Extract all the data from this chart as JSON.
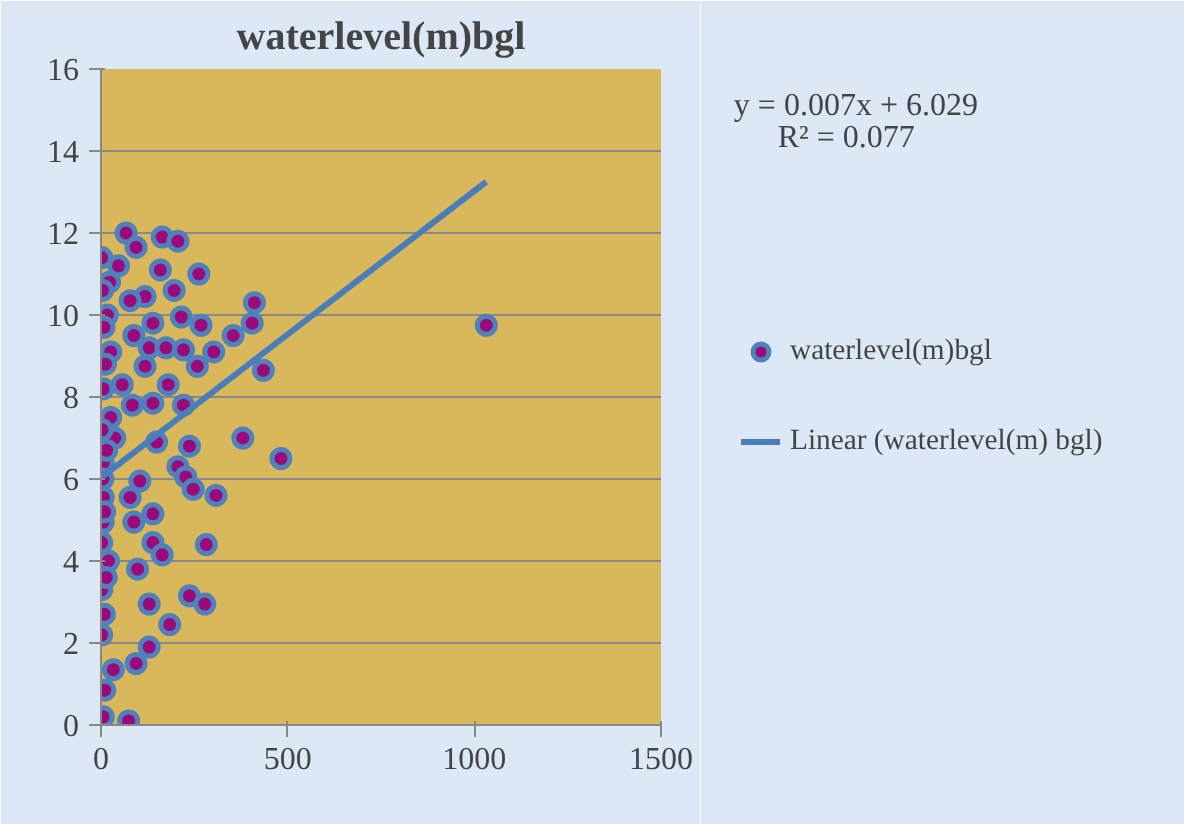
{
  "chart_data": {
    "type": "scatter",
    "title": "waterlevel(m)bgl",
    "annotations": [
      "y = 0.007x + 6.029",
      "R² = 0.077"
    ],
    "xlim": [
      0,
      1500
    ],
    "xticks": [
      0,
      500,
      1000,
      1500
    ],
    "ylim": [
      0,
      16
    ],
    "yticks": [
      0,
      2,
      4,
      6,
      8,
      10,
      12,
      14,
      16
    ],
    "grid": "y",
    "legend": "right",
    "series": [
      {
        "name": "waterlevel(m)bgl",
        "color": "#9b0a7a",
        "marker": "circle",
        "x": [
          67,
          164,
          206,
          94,
          2,
          47,
          159,
          262,
          23,
          196,
          411,
          118,
          78,
          17,
          215,
          139,
          268,
          405,
          354,
          88,
          26,
          129,
          174,
          221,
          302,
          258,
          435,
          118,
          180,
          57,
          6,
          139,
          84,
          221,
          26,
          149,
          380,
          482,
          37,
          237,
          206,
          227,
          247,
          308,
          6,
          104,
          6,
          78,
          139,
          88,
          6,
          2,
          139,
          164,
          282,
          98,
          2,
          129,
          237,
          278,
          184,
          2,
          129,
          94,
          33,
          10,
          6,
          74,
          1032,
          4,
          8,
          12,
          3,
          15,
          5,
          10,
          20,
          14,
          9
        ],
        "values": [
          12.0,
          11.9,
          11.8,
          11.65,
          11.4,
          11.2,
          11.1,
          11.0,
          10.8,
          10.6,
          10.3,
          10.45,
          10.35,
          10.0,
          9.95,
          9.8,
          9.75,
          9.8,
          9.5,
          9.5,
          9.1,
          9.2,
          9.2,
          9.15,
          9.1,
          8.75,
          8.65,
          8.75,
          8.3,
          8.3,
          8.2,
          7.85,
          7.8,
          7.8,
          7.5,
          6.9,
          7.0,
          6.5,
          7.0,
          6.8,
          6.3,
          6.05,
          5.75,
          5.6,
          6.4,
          5.95,
          5.55,
          5.55,
          5.15,
          4.95,
          4.95,
          4.45,
          4.45,
          4.15,
          4.4,
          3.8,
          3.3,
          2.95,
          3.15,
          2.95,
          2.45,
          2.2,
          1.9,
          1.5,
          1.35,
          0.85,
          0.2,
          0.1,
          9.75,
          10.6,
          9.7,
          8.8,
          7.2,
          6.7,
          6.0,
          5.2,
          4.0,
          3.6,
          2.7
        ]
      },
      {
        "name": "Linear (waterlevel(m) bgl)",
        "type": "line",
        "color": "#4a7ebb",
        "x": [
          0,
          1032
        ],
        "values": [
          6.03,
          13.25
        ]
      }
    ]
  }
}
